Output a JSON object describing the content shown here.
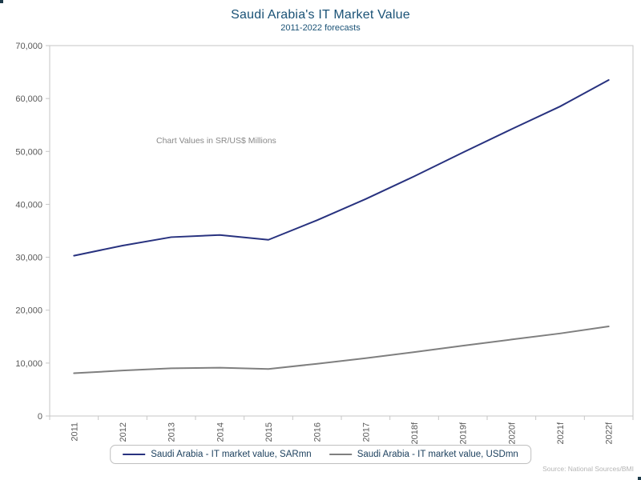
{
  "header": {
    "title": "Saudi Arabia's IT Market Value",
    "subtitle": "2011-2022 forecasts"
  },
  "annotation": "Chart Values in SR/US$ Millions",
  "source": "Source: National Sources/BMI",
  "colors": {
    "title": "#1a5276",
    "subtitle": "#1a5276",
    "sar_line": "#28327f",
    "usd_line": "#7f7f7f",
    "axis": "#c6c6c6",
    "tick_label": "#595959",
    "annotation": "#898989",
    "source": "#b5b5b5",
    "legend_text": "#1a3e5c",
    "legend_border": "#bfbfbf"
  },
  "chart_data": {
    "type": "line",
    "title": "Saudi Arabia's IT Market Value",
    "subtitle": "2011-2022 forecasts",
    "categories": [
      "2011",
      "2012",
      "2013",
      "2014",
      "2015",
      "2016",
      "2017",
      "2018f",
      "2019f",
      "2020f",
      "2021f",
      "2022f"
    ],
    "series": [
      {
        "name": "Saudi Arabia - IT market value, SARmn",
        "color_key": "sar_line",
        "values": [
          30300,
          32200,
          33800,
          34200,
          33300,
          37000,
          41000,
          45300,
          49800,
          54200,
          58500,
          63500
        ]
      },
      {
        "name": "Saudi Arabia - IT market value, USDmn",
        "color_key": "usd_line",
        "values": [
          8080,
          8590,
          9010,
          9120,
          8880,
          9870,
          10930,
          12080,
          13280,
          14450,
          15600,
          16930
        ]
      }
    ],
    "xlabel": "",
    "ylabel": "",
    "ylim": [
      0,
      70000
    ],
    "ytick_step": 10000,
    "grid": false,
    "legend_position": "bottom"
  }
}
